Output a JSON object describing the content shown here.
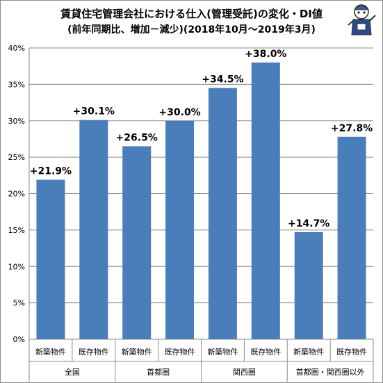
{
  "chart_data": {
    "type": "bar",
    "title": "賃貸住宅管理会社における仕入(管理受託)の変化・DI値",
    "subtitle": "(前年同期比、増加－減少)(2018年10月～2019年3月)",
    "groups": [
      "全国",
      "首都圏",
      "関西圏",
      "首都圏・関西圏以外"
    ],
    "categories": [
      "新築物件",
      "既存物件",
      "新築物件",
      "既存物件",
      "新築物件",
      "既存物件",
      "新築物件",
      "既存物件"
    ],
    "values": [
      21.9,
      30.1,
      26.5,
      30.0,
      34.5,
      38.0,
      14.7,
      27.8
    ],
    "data_labels": [
      "+21.9%",
      "+30.1%",
      "+26.5%",
      "+30.0%",
      "+34.5%",
      "+38.0%",
      "+14.7%",
      "+27.8%"
    ],
    "ylim": [
      0,
      40
    ],
    "yticks": [
      "0%",
      "5%",
      "10%",
      "15%",
      "20%",
      "25%",
      "30%",
      "35%",
      "40%"
    ],
    "grid": true,
    "bar_color": "#4a7ebb"
  }
}
